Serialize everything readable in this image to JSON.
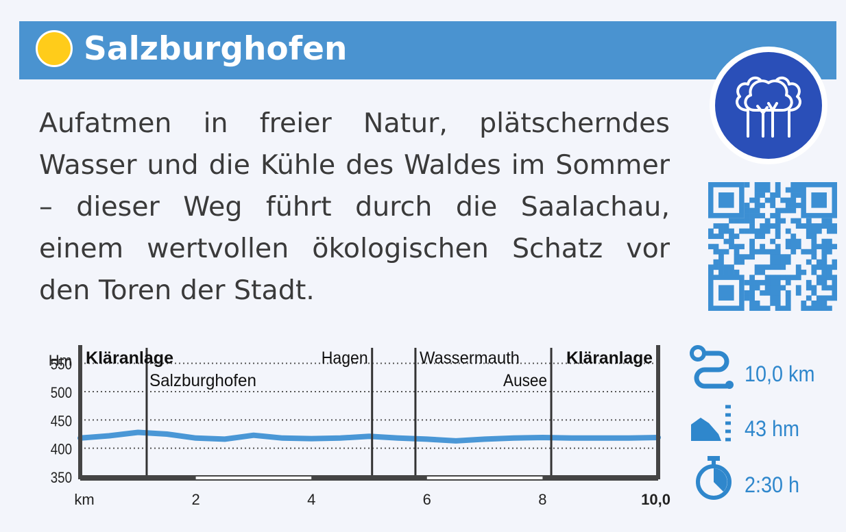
{
  "title": "Salzburghofen",
  "description": "Aufatmen in freier Natur, plätscherndes Wasser und die Kühle des Waldes im Sommer – dieser Weg führt durch die Saalachau, einem wertvollen ökologischen Schatz vor den Toren der Stadt.",
  "badge": {
    "icon": "forest-trees-icon"
  },
  "qr": {
    "icon": "qr-code-icon"
  },
  "stats": {
    "distance": {
      "icon": "route-icon",
      "value": "10,0 km"
    },
    "ascent": {
      "icon": "elevation-icon",
      "value": "43 hm"
    },
    "duration": {
      "icon": "stopwatch-icon",
      "value": "2:30 h"
    }
  },
  "colors": {
    "title_bar": "#4a93d0",
    "sun": "#ffcc1a",
    "badge": "#2a4fb8",
    "accent": "#2f87cc",
    "qr": "#3c8fd3",
    "profile": "#4a97d6"
  },
  "chart_data": {
    "type": "area",
    "ylabel": "Hm",
    "xlabel": "km",
    "ylim": [
      350,
      575
    ],
    "xlim": [
      0,
      10
    ],
    "y_ticks": [
      "550",
      "500",
      "450",
      "400",
      "350"
    ],
    "x_ticks": [
      "2",
      "4",
      "6",
      "8",
      "10,0"
    ],
    "x": [
      0,
      0.5,
      1.0,
      1.5,
      2.0,
      2.5,
      3.0,
      3.5,
      4.0,
      4.5,
      5.0,
      5.5,
      6.0,
      6.5,
      7.0,
      7.5,
      8.0,
      8.5,
      9.0,
      9.5,
      10.0
    ],
    "y": [
      418,
      422,
      428,
      425,
      418,
      416,
      423,
      418,
      417,
      418,
      421,
      418,
      416,
      413,
      416,
      418,
      419,
      418,
      418,
      418,
      419
    ],
    "waypoints": [
      {
        "km": 1.15,
        "name": "Salzburghofen"
      },
      {
        "km": 5.05,
        "name": "Hagen"
      },
      {
        "km": 5.8,
        "name": "Wassermauth"
      },
      {
        "km": 8.15,
        "name": "Ausee"
      }
    ],
    "start_label": "Kläranlage",
    "end_label": "Kläranlage"
  }
}
